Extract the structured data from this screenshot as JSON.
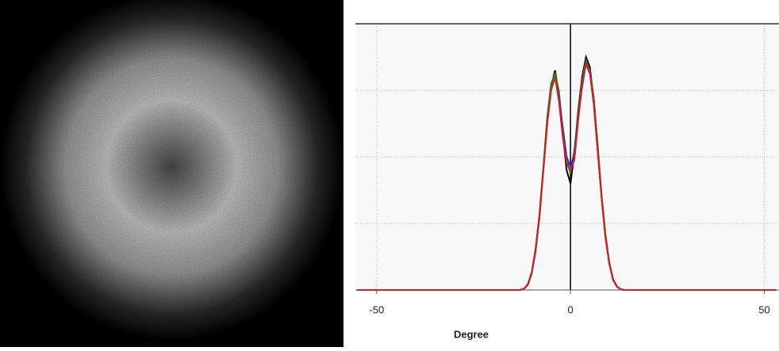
{
  "chart_data": {
    "type": "line",
    "x_label": "Degree",
    "x": [
      -55,
      -14,
      -13,
      -12,
      -11,
      -10,
      -9,
      -8,
      -7,
      -6,
      -5,
      -4,
      -3,
      -2,
      -1,
      0,
      1,
      2,
      3,
      4,
      5,
      6,
      7,
      8,
      9,
      10,
      11,
      12,
      13,
      14,
      53
    ],
    "series": [
      {
        "color": "#000000",
        "values": [
          0,
          0,
          0,
          0.02,
          0.08,
          0.26,
          0.62,
          1.12,
          1.82,
          2.55,
          3.05,
          3.3,
          2.95,
          2.35,
          1.8,
          1.6,
          2.05,
          2.7,
          3.2,
          3.5,
          3.35,
          2.85,
          2.15,
          1.42,
          0.82,
          0.41,
          0.16,
          0.05,
          0.01,
          0,
          0
        ]
      },
      {
        "color": "#1a8a1a",
        "values": [
          0,
          0,
          0,
          0.02,
          0.09,
          0.27,
          0.6,
          1.15,
          1.85,
          2.6,
          3.1,
          3.25,
          3.0,
          2.4,
          1.95,
          1.75,
          2.1,
          2.65,
          3.15,
          3.45,
          3.3,
          2.9,
          2.2,
          1.45,
          0.85,
          0.42,
          0.15,
          0.05,
          0.01,
          0,
          0
        ]
      },
      {
        "color": "#3030c0",
        "values": [
          0,
          0,
          0,
          0.02,
          0.08,
          0.25,
          0.58,
          1.1,
          1.8,
          2.5,
          3.0,
          3.2,
          2.9,
          2.45,
          2.0,
          1.85,
          2.05,
          2.6,
          3.05,
          3.4,
          3.25,
          2.8,
          2.1,
          1.4,
          0.8,
          0.4,
          0.15,
          0.05,
          0.01,
          0,
          0
        ]
      },
      {
        "color": "#d42020",
        "values": [
          0,
          0,
          0,
          0.02,
          0.08,
          0.25,
          0.6,
          1.1,
          1.8,
          2.5,
          3.0,
          3.2,
          2.85,
          2.3,
          1.9,
          1.8,
          1.95,
          2.55,
          3.1,
          3.4,
          3.3,
          2.8,
          2.1,
          1.4,
          0.8,
          0.4,
          0.15,
          0.05,
          0.01,
          0,
          0
        ]
      }
    ],
    "xlim": [
      -55.5,
      53.8
    ],
    "xticks": [
      -50,
      0,
      50
    ],
    "ylim": [
      0,
      4
    ],
    "yticks": [
      0,
      1,
      2,
      3,
      4
    ],
    "grid": true
  }
}
